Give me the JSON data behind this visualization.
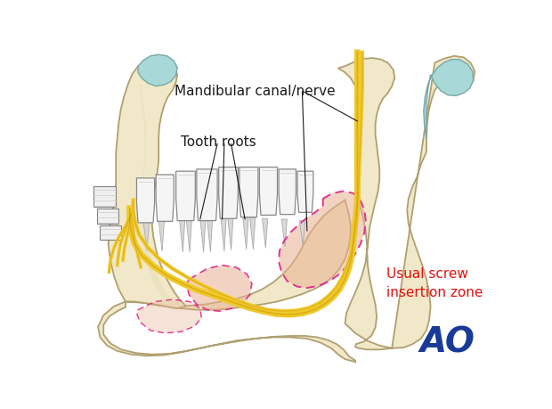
{
  "bg_color": "#ffffff",
  "bone_color": "#f0e8c8",
  "bone_inner_color": "#e8ddb8",
  "bone_outline": "#b0a070",
  "bone_shadow": "#d4c898",
  "teeth_color": "#f8f8f8",
  "teeth_outline": "#909090",
  "nerve_yellow": "#f0c828",
  "nerve_dark": "#c8960a",
  "nerve_thin": "#c0a060",
  "pink_zone_color": "#e8b090",
  "pink_zone_alpha": 0.55,
  "pink_dashed": "#e0208a",
  "teal_color": "#a8d8d8",
  "teal_outline": "#78a8a8",
  "label_mandibular": "Mandibular canal/nerve",
  "label_tooth_roots": "Tooth roots",
  "label_screw_zone": "Usual screw\ninsertion zone",
  "label_ao": "AO",
  "label_color_black": "#1a1a1a",
  "label_color_red": "#e01010",
  "label_color_blue": "#1a3a9a",
  "figsize": [
    6.2,
    4.59
  ],
  "dpi": 100
}
